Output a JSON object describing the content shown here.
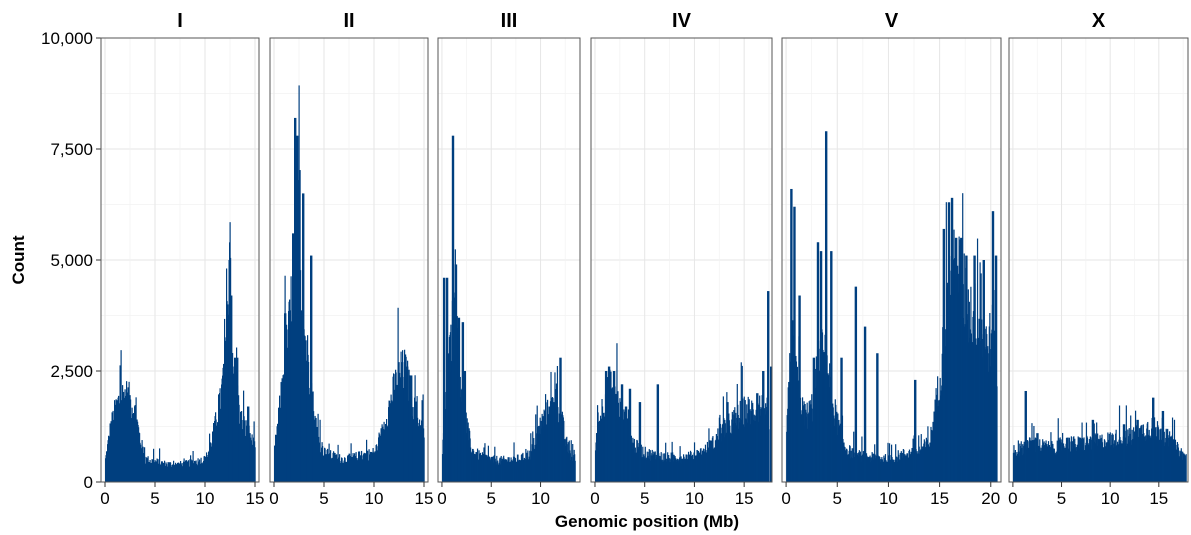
{
  "chart_data": {
    "type": "bar",
    "xlabel": "Genomic position (Mb)",
    "ylabel": "Count",
    "ylim": [
      0,
      10000
    ],
    "yticks": [
      0,
      2500,
      5000,
      7500,
      10000
    ],
    "ytick_labels": [
      "0",
      "2,500",
      "5,000",
      "7,500",
      "10,000"
    ],
    "bar_color": "#003f7f",
    "grid": true,
    "facets": [
      {
        "name": "I",
        "xlim": [
          -0.4,
          15.4
        ],
        "xticks": [
          0,
          5,
          10,
          15
        ],
        "xtick_labels": [
          "0",
          "5",
          "10",
          "15"
        ],
        "profile": [
          [
            0,
            500
          ],
          [
            0.5,
            1200
          ],
          [
            1,
            1600
          ],
          [
            1.5,
            1900
          ],
          [
            2,
            1950
          ],
          [
            2.5,
            1800
          ],
          [
            3,
            1500
          ],
          [
            3.5,
            900
          ],
          [
            4,
            500
          ],
          [
            5,
            450
          ],
          [
            6,
            400
          ],
          [
            7,
            380
          ],
          [
            8,
            400
          ],
          [
            9,
            450
          ],
          [
            10,
            500
          ],
          [
            10.5,
            800
          ],
          [
            11,
            1300
          ],
          [
            11.5,
            1800
          ],
          [
            12,
            2800
          ],
          [
            12.3,
            4000
          ],
          [
            12.6,
            3000
          ],
          [
            13,
            2200
          ],
          [
            13.5,
            1400
          ],
          [
            14,
            1200
          ],
          [
            14.5,
            1000
          ],
          [
            15,
            700
          ]
        ],
        "spikes": [
          [
            12.1,
            4000
          ],
          [
            12.35,
            5000
          ],
          [
            12.5,
            4200
          ],
          [
            12.9,
            2800
          ],
          [
            13.1,
            2800
          ],
          [
            14.2,
            1700
          ]
        ]
      },
      {
        "name": "II",
        "xlim": [
          -0.4,
          15.4
        ],
        "xticks": [
          0,
          5,
          10,
          15
        ],
        "xtick_labels": [
          "0",
          "5",
          "10",
          "15"
        ],
        "profile": [
          [
            0,
            700
          ],
          [
            0.5,
            1600
          ],
          [
            1,
            2600
          ],
          [
            1.5,
            3500
          ],
          [
            2,
            5000
          ],
          [
            2.3,
            5800
          ],
          [
            2.7,
            4300
          ],
          [
            3,
            3300
          ],
          [
            3.5,
            2500
          ],
          [
            4,
            1400
          ],
          [
            4.5,
            900
          ],
          [
            5,
            650
          ],
          [
            6,
            550
          ],
          [
            7,
            500
          ],
          [
            8,
            550
          ],
          [
            9,
            600
          ],
          [
            10,
            650
          ],
          [
            10.5,
            900
          ],
          [
            11,
            1300
          ],
          [
            11.5,
            1700
          ],
          [
            12,
            2100
          ],
          [
            12.5,
            2400
          ],
          [
            13,
            2500
          ],
          [
            13.5,
            2100
          ],
          [
            14,
            1600
          ],
          [
            14.5,
            1300
          ],
          [
            15,
            1100
          ]
        ],
        "spikes": [
          [
            1,
            3800
          ],
          [
            1.4,
            3850
          ],
          [
            1.8,
            5600
          ],
          [
            2,
            8200
          ],
          [
            2.2,
            7800
          ],
          [
            2.4,
            6800
          ],
          [
            2.8,
            6500
          ],
          [
            3,
            3100
          ],
          [
            3.6,
            5100
          ],
          [
            12.7,
            2700
          ],
          [
            13.2,
            2600
          ],
          [
            13.6,
            2400
          ]
        ]
      },
      {
        "name": "III",
        "xlim": [
          -0.4,
          14.0
        ],
        "xticks": [
          0,
          5,
          10
        ],
        "xtick_labels": [
          "0",
          "5",
          "10"
        ],
        "profile": [
          [
            0,
            600
          ],
          [
            0.3,
            1800
          ],
          [
            0.8,
            3000
          ],
          [
            1.2,
            3600
          ],
          [
            1.6,
            2800
          ],
          [
            2,
            2000
          ],
          [
            2.5,
            1200
          ],
          [
            3,
            700
          ],
          [
            4,
            550
          ],
          [
            5,
            500
          ],
          [
            6,
            480
          ],
          [
            7,
            500
          ],
          [
            8,
            520
          ],
          [
            9,
            650
          ],
          [
            9.5,
            1000
          ],
          [
            10,
            1300
          ],
          [
            10.5,
            1500
          ],
          [
            11,
            1600
          ],
          [
            11.5,
            1900
          ],
          [
            12,
            1500
          ],
          [
            12.5,
            900
          ],
          [
            13,
            600
          ],
          [
            13.5,
            500
          ]
        ],
        "spikes": [
          [
            0.1,
            4600
          ],
          [
            0.4,
            4600
          ],
          [
            1,
            7800
          ],
          [
            1.3,
            4900
          ],
          [
            1.6,
            3700
          ],
          [
            2,
            3600
          ],
          [
            2.2,
            2500
          ],
          [
            11.9,
            2800
          ],
          [
            11.2,
            1800
          ],
          [
            10.8,
            1700
          ]
        ]
      },
      {
        "name": "IV",
        "xlim": [
          -0.4,
          17.8
        ],
        "xticks": [
          0,
          5,
          10,
          15
        ],
        "xtick_labels": [
          "0",
          "5",
          "10",
          "15"
        ],
        "profile": [
          [
            0,
            800
          ],
          [
            0.5,
            1500
          ],
          [
            1,
            1900
          ],
          [
            1.5,
            2100
          ],
          [
            2,
            2000
          ],
          [
            2.5,
            1600
          ],
          [
            3,
            1300
          ],
          [
            3.5,
            1000
          ],
          [
            4,
            800
          ],
          [
            5,
            650
          ],
          [
            6,
            600
          ],
          [
            7,
            550
          ],
          [
            8,
            550
          ],
          [
            9,
            550
          ],
          [
            10,
            600
          ],
          [
            11,
            700
          ],
          [
            12,
            900
          ],
          [
            12.5,
            1100
          ],
          [
            13,
            1200
          ],
          [
            13.5,
            1300
          ],
          [
            14,
            1400
          ],
          [
            14.5,
            1500
          ],
          [
            15,
            1600
          ],
          [
            16,
            1600
          ],
          [
            16.5,
            1700
          ],
          [
            17,
            1600
          ],
          [
            17.5,
            900
          ]
        ],
        "spikes": [
          [
            1,
            2500
          ],
          [
            1.3,
            2600
          ],
          [
            1.8,
            2500
          ],
          [
            2.6,
            2200
          ],
          [
            3,
            1700
          ],
          [
            3.4,
            2100
          ],
          [
            4.4,
            1800
          ],
          [
            6.2,
            2200
          ],
          [
            13.2,
            1800
          ],
          [
            16.2,
            2000
          ],
          [
            16.8,
            2500
          ],
          [
            17.3,
            4300
          ],
          [
            17.6,
            2600
          ]
        ]
      },
      {
        "name": "V",
        "xlim": [
          -0.4,
          21.0
        ],
        "xticks": [
          0,
          5,
          10,
          15,
          20
        ],
        "xtick_labels": [
          "0",
          "5",
          "10",
          "15",
          "20"
        ],
        "profile": [
          [
            0,
            1000
          ],
          [
            0.3,
            2500
          ],
          [
            0.6,
            3000
          ],
          [
            1,
            2200
          ],
          [
            1.5,
            1600
          ],
          [
            2,
            1500
          ],
          [
            2.5,
            1700
          ],
          [
            3,
            2500
          ],
          [
            3.5,
            2900
          ],
          [
            4,
            2600
          ],
          [
            4.5,
            1800
          ],
          [
            5,
            1300
          ],
          [
            5.5,
            900
          ],
          [
            6,
            700
          ],
          [
            7,
            600
          ],
          [
            8,
            550
          ],
          [
            9,
            550
          ],
          [
            10,
            500
          ],
          [
            11,
            600
          ],
          [
            12,
            650
          ],
          [
            13,
            700
          ],
          [
            14,
            900
          ],
          [
            14.5,
            1600
          ],
          [
            15,
            2400
          ],
          [
            15.5,
            3500
          ],
          [
            16,
            4400
          ],
          [
            16.5,
            4800
          ],
          [
            17,
            4600
          ],
          [
            17.5,
            4100
          ],
          [
            18,
            3800
          ],
          [
            18.5,
            3700
          ],
          [
            19,
            3400
          ],
          [
            19.5,
            3100
          ],
          [
            20,
            3200
          ],
          [
            20.3,
            3600
          ],
          [
            20.6,
            1500
          ]
        ],
        "spikes": [
          [
            0.4,
            6600
          ],
          [
            0.7,
            6200
          ],
          [
            1.2,
            4200
          ],
          [
            2.6,
            2800
          ],
          [
            3,
            5400
          ],
          [
            3.3,
            5200
          ],
          [
            3.8,
            7900
          ],
          [
            4.3,
            5200
          ],
          [
            5.3,
            2800
          ],
          [
            6.7,
            4400
          ],
          [
            7.6,
            3500
          ],
          [
            8.8,
            2900
          ],
          [
            12.5,
            2300
          ],
          [
            15.3,
            5700
          ],
          [
            15.8,
            6300
          ],
          [
            16.1,
            6400
          ],
          [
            16.5,
            5500
          ],
          [
            17,
            5500
          ],
          [
            17.5,
            5100
          ],
          [
            18.3,
            5100
          ],
          [
            19.2,
            5000
          ],
          [
            20.1,
            6100
          ],
          [
            20.4,
            5100
          ]
        ]
      },
      {
        "name": "X",
        "xlim": [
          -0.4,
          18.0
        ],
        "xticks": [
          0,
          5,
          10,
          15
        ],
        "xtick_labels": [
          "0",
          "5",
          "10",
          "15"
        ],
        "profile": [
          [
            0,
            600
          ],
          [
            1,
            800
          ],
          [
            2,
            850
          ],
          [
            3,
            800
          ],
          [
            4,
            750
          ],
          [
            5,
            850
          ],
          [
            6,
            850
          ],
          [
            7,
            850
          ],
          [
            8,
            900
          ],
          [
            9,
            900
          ],
          [
            10,
            950
          ],
          [
            11,
            1000
          ],
          [
            12,
            1000
          ],
          [
            13,
            1100
          ],
          [
            14,
            1250
          ],
          [
            15,
            1150
          ],
          [
            16,
            950
          ],
          [
            17,
            700
          ],
          [
            17.8,
            550
          ]
        ],
        "spikes": [
          [
            1.2,
            2050
          ],
          [
            2.4,
            1100
          ],
          [
            5.5,
            1000
          ],
          [
            8.1,
            1400
          ],
          [
            11.3,
            1300
          ],
          [
            12.7,
            1400
          ],
          [
            14.3,
            1900
          ],
          [
            15.3,
            1600
          ]
        ]
      }
    ]
  }
}
